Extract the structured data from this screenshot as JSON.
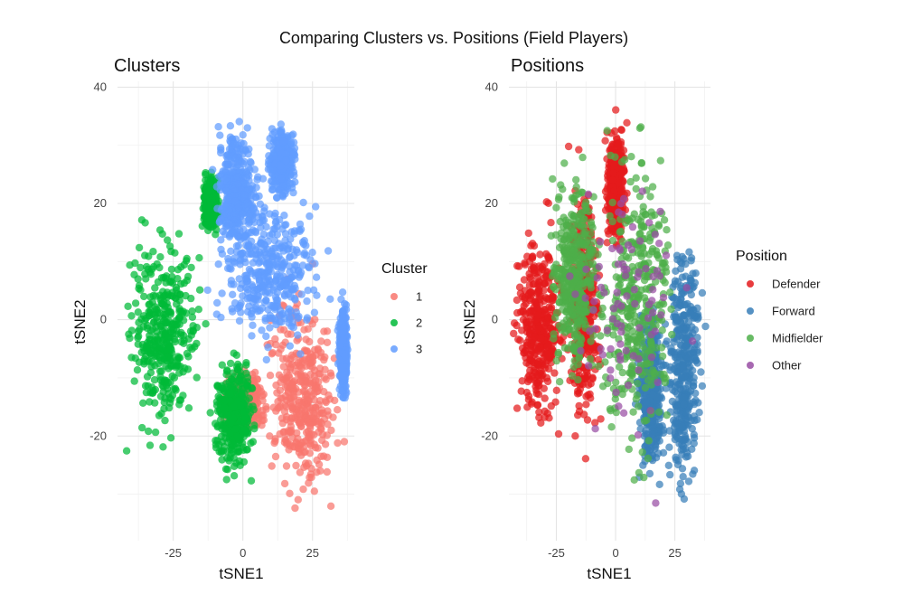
{
  "figure": {
    "title": "Comparing Clusters vs. Positions (Field Players)"
  },
  "chart_data": [
    {
      "type": "scatter",
      "title": "Clusters",
      "xlabel": "tSNE1",
      "ylabel": "tSNE2",
      "xlim": [
        -45,
        40
      ],
      "ylim": [
        -38,
        41
      ],
      "x_ticks": [
        -25,
        0,
        25
      ],
      "y_ticks": [
        -20,
        0,
        20,
        40
      ],
      "grid": true,
      "legend": {
        "title": "Cluster",
        "placement": "right"
      },
      "series": [
        {
          "name": "1",
          "color": "#F8766D",
          "regions": [
            {
              "x": [
                4,
                38
              ],
              "y": [
                -35,
                9
              ]
            },
            {
              "x": [
                -8,
                10
              ],
              "y": [
                -20,
                -8
              ]
            }
          ]
        },
        {
          "name": "2",
          "color": "#00BA38",
          "regions": [
            {
              "x": [
                -45,
                -12
              ],
              "y": [
                -23,
                18
              ]
            },
            {
              "x": [
                -12,
                6
              ],
              "y": [
                -28,
                -5
              ]
            },
            {
              "x": [
                -15,
                -8
              ],
              "y": [
                14,
                26
              ]
            }
          ]
        },
        {
          "name": "3",
          "color": "#619CFF",
          "regions": [
            {
              "x": [
                -12,
                8
              ],
              "y": [
                8,
                36
              ]
            },
            {
              "x": [
                -14,
                34
              ],
              "y": [
                -8,
                24
              ]
            },
            {
              "x": [
                8,
                20
              ],
              "y": [
                20,
                34
              ]
            },
            {
              "x": [
                34,
                38
              ],
              "y": [
                -15,
                5
              ]
            }
          ]
        }
      ]
    },
    {
      "type": "scatter",
      "title": "Positions",
      "xlabel": "tSNE1",
      "ylabel": "tSNE2",
      "xlim": [
        -45,
        40
      ],
      "ylim": [
        -38,
        41
      ],
      "x_ticks": [
        -25,
        0,
        25
      ],
      "y_ticks": [
        -20,
        0,
        20,
        40
      ],
      "grid": true,
      "legend": {
        "title": "Position",
        "placement": "right"
      },
      "series": [
        {
          "name": "Defender",
          "color": "#E41A1C",
          "regions": [
            {
              "x": [
                -45,
                -20
              ],
              "y": [
                -22,
                20
              ]
            },
            {
              "x": [
                -22,
                -5
              ],
              "y": [
                -25,
                30
              ]
            },
            {
              "x": [
                -5,
                5
              ],
              "y": [
                10,
                36
              ]
            }
          ]
        },
        {
          "name": "Forward",
          "color": "#377EB8",
          "regions": [
            {
              "x": [
                20,
                38
              ],
              "y": [
                -35,
                18
              ]
            },
            {
              "x": [
                8,
                22
              ],
              "y": [
                -30,
                5
              ]
            }
          ]
        },
        {
          "name": "Midfielder",
          "color": "#4DAF4A",
          "regions": [
            {
              "x": [
                -12,
                28
              ],
              "y": [
                -30,
                36
              ]
            },
            {
              "x": [
                -30,
                -5
              ],
              "y": [
                -15,
                30
              ]
            }
          ]
        },
        {
          "name": "Other",
          "color": "#984EA3",
          "regions": [
            {
              "x": [
                -30,
                38
              ],
              "y": [
                -30,
                35
              ]
            }
          ]
        }
      ]
    }
  ]
}
